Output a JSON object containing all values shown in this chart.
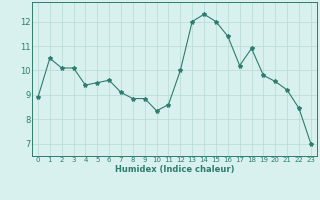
{
  "x": [
    0,
    1,
    2,
    3,
    4,
    5,
    6,
    7,
    8,
    9,
    10,
    11,
    12,
    13,
    14,
    15,
    16,
    17,
    18,
    19,
    20,
    21,
    22,
    23
  ],
  "y": [
    8.9,
    10.5,
    10.1,
    10.1,
    9.4,
    9.5,
    9.6,
    9.1,
    8.85,
    8.85,
    8.35,
    8.6,
    10.0,
    12.0,
    12.3,
    12.0,
    11.4,
    10.2,
    10.9,
    9.8,
    9.55,
    9.2,
    8.45,
    7.0
  ],
  "line_color": "#2e7d6e",
  "marker": "*",
  "marker_size": 3,
  "bg_color": "#d8f0ee",
  "grid_color": "#b8d8d4",
  "xlabel": "Humidex (Indice chaleur)",
  "ylim": [
    6.5,
    12.8
  ],
  "xlim": [
    -0.5,
    23.5
  ],
  "yticks": [
    7,
    8,
    9,
    10,
    11,
    12
  ],
  "xticks": [
    0,
    1,
    2,
    3,
    4,
    5,
    6,
    7,
    8,
    9,
    10,
    11,
    12,
    13,
    14,
    15,
    16,
    17,
    18,
    19,
    20,
    21,
    22,
    23
  ],
  "tick_color": "#2e7d6e",
  "label_color": "#2e7d6e",
  "spine_color": "#2e7d6e",
  "xlabel_fontsize": 6.0,
  "xtick_fontsize": 5.0,
  "ytick_fontsize": 6.0
}
